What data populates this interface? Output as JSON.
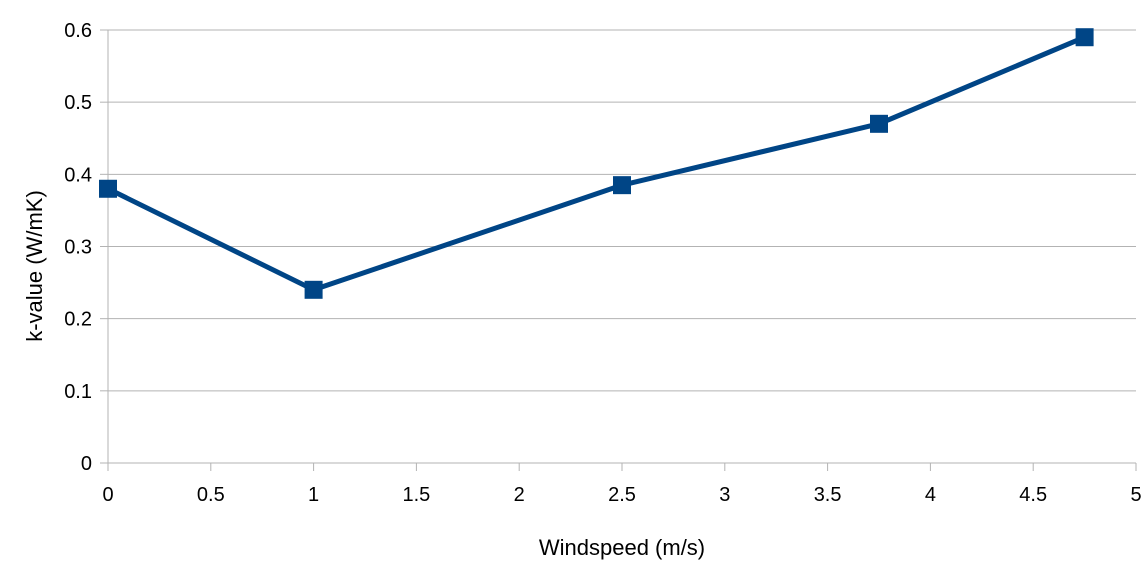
{
  "chart_data": {
    "type": "line",
    "title": "",
    "xlabel": "Windspeed (m/s)",
    "ylabel": "k-value (W/mK)",
    "xlim": [
      0,
      5
    ],
    "ylim": [
      0,
      0.6
    ],
    "x_ticks": [
      "0",
      "0.5",
      "1",
      "1.5",
      "2",
      "2.5",
      "3",
      "3.5",
      "4",
      "4.5",
      "5"
    ],
    "y_ticks": [
      "0",
      "0.1",
      "0.2",
      "0.3",
      "0.4",
      "0.5",
      "0.6"
    ],
    "grid": "horizontal",
    "legend": "none",
    "marker": "square",
    "series": [
      {
        "color": "#004586",
        "x": [
          0,
          1,
          2.5,
          3.75,
          4.75
        ],
        "y": [
          0.38,
          0.24,
          0.385,
          0.47,
          0.59
        ]
      }
    ]
  }
}
